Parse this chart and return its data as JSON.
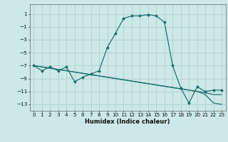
{
  "xlabel": "Humidex (Indice chaleur)",
  "bg_color": "#cce8e8",
  "grid_color": "#aacccc",
  "line_color": "#1a6b6b",
  "xlim": [
    -0.5,
    23.5
  ],
  "ylim": [
    -14,
    2.5
  ],
  "yticks": [
    1,
    -1,
    -3,
    -5,
    -7,
    -9,
    -11,
    -13
  ],
  "xticks": [
    0,
    1,
    2,
    3,
    4,
    5,
    6,
    7,
    8,
    9,
    10,
    11,
    12,
    13,
    14,
    15,
    16,
    17,
    18,
    19,
    20,
    21,
    22,
    23
  ],
  "curve1_x": [
    0,
    1,
    2,
    3,
    4,
    5,
    6,
    7,
    8,
    9,
    10,
    11,
    12,
    13,
    14,
    15,
    16,
    17,
    18,
    19,
    20,
    21,
    22,
    23
  ],
  "curve1_y": [
    -7.0,
    -7.8,
    -7.2,
    -7.8,
    -7.2,
    -9.5,
    -8.8,
    -8.3,
    -7.8,
    -4.2,
    -2.0,
    0.3,
    0.7,
    0.7,
    0.9,
    0.7,
    -0.3,
    -7.0,
    -10.5,
    -12.8,
    -10.3,
    -11.0,
    -10.8,
    -10.8
  ],
  "curve2_x": [
    0,
    20,
    21,
    22,
    23
  ],
  "curve2_y": [
    -7.0,
    -11.0,
    -11.5,
    -12.8,
    -13.0
  ],
  "curve3_x": [
    0,
    20,
    21,
    22,
    23
  ],
  "curve3_y": [
    -7.0,
    -11.0,
    -11.2,
    -11.5,
    -11.5
  ],
  "xlabel_fontsize": 6.0,
  "tick_fontsize": 5.2,
  "lw": 0.85,
  "ms": 2.2
}
